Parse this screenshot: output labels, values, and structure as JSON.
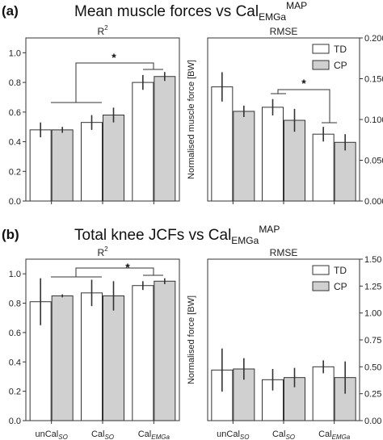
{
  "panels": [
    {
      "letter": "(a)",
      "title_main": "Mean muscle forces vs Cal",
      "title_sub": "EMGa",
      "title_sup": "MAP"
    },
    {
      "letter": "(b)",
      "title_main": "Total knee JCFs vs Cal",
      "title_sub": "EMGa",
      "title_sup": "MAP"
    }
  ],
  "x_tick_labels": [
    {
      "base": "unCal",
      "sub": "SO"
    },
    {
      "base": "Cal",
      "sub": "SO"
    },
    {
      "base": "Cal",
      "sub": "EMGa"
    }
  ],
  "legend": [
    "TD",
    "CP"
  ],
  "colors": {
    "TD": "#ffffff",
    "CP": "#d0d0d0",
    "edge": "#333333",
    "error": "#333333"
  },
  "chart_data": [
    {
      "type": "bar",
      "panel": "a",
      "title_base": "R",
      "title_sup": "2",
      "categories": [
        "unCal_SO",
        "Cal_SO",
        "Cal_EMGa"
      ],
      "series": [
        {
          "name": "TD",
          "values": [
            0.48,
            0.53,
            0.8
          ],
          "err": [
            0.05,
            0.05,
            0.05
          ]
        },
        {
          "name": "CP",
          "values": [
            0.48,
            0.58,
            0.84
          ],
          "err": [
            0.02,
            0.05,
            0.03
          ]
        }
      ],
      "ylim": [
        0.0,
        1.1
      ],
      "yticks": [
        "0.0",
        "0.2",
        "0.4",
        "0.6",
        "0.8",
        "1.0"
      ],
      "significance": {
        "label": "*"
      }
    },
    {
      "type": "bar",
      "panel": "a",
      "title": "RMSE",
      "ylabel": "Normalised muscle force [BW]",
      "categories": [
        "unCal_SO",
        "Cal_SO",
        "Cal_EMGa"
      ],
      "series": [
        {
          "name": "TD",
          "values": [
            0.14,
            0.115,
            0.082
          ],
          "err": [
            0.018,
            0.01,
            0.009
          ]
        },
        {
          "name": "CP",
          "values": [
            0.11,
            0.099,
            0.072
          ],
          "err": [
            0.007,
            0.014,
            0.01
          ]
        }
      ],
      "ylim": [
        0.0,
        0.2
      ],
      "yticks": [
        "0.000",
        "0.050",
        "0.100",
        "0.150",
        "0.200"
      ],
      "legend_position": "top-right",
      "significance": {
        "label": "*"
      }
    },
    {
      "type": "bar",
      "panel": "b",
      "title_base": "R",
      "title_sup": "2",
      "categories": [
        "unCal_SO",
        "Cal_SO",
        "Cal_EMGa"
      ],
      "series": [
        {
          "name": "TD",
          "values": [
            0.81,
            0.87,
            0.92
          ],
          "err": [
            0.16,
            0.09,
            0.03
          ]
        },
        {
          "name": "CP",
          "values": [
            0.85,
            0.85,
            0.95
          ],
          "err": [
            0.01,
            0.1,
            0.02
          ]
        }
      ],
      "ylim": [
        0.0,
        1.1
      ],
      "yticks": [
        "0.0",
        "0.2",
        "0.4",
        "0.6",
        "0.8",
        "1.0"
      ],
      "significance": {
        "label": "*"
      }
    },
    {
      "type": "bar",
      "panel": "b",
      "title": "RMSE",
      "ylabel": "Normalised force [BW]",
      "categories": [
        "unCal_SO",
        "Cal_SO",
        "Cal_EMGa"
      ],
      "series": [
        {
          "name": "TD",
          "values": [
            0.47,
            0.38,
            0.5
          ],
          "err": [
            0.2,
            0.1,
            0.06
          ]
        },
        {
          "name": "CP",
          "values": [
            0.48,
            0.4,
            0.4
          ],
          "err": [
            0.1,
            0.09,
            0.15
          ]
        }
      ],
      "ylim": [
        0.0,
        1.5
      ],
      "yticks": [
        "0.00",
        "0.25",
        "0.50",
        "0.75",
        "1.00",
        "1.25",
        "1.50"
      ],
      "legend_position": "top-right"
    }
  ]
}
